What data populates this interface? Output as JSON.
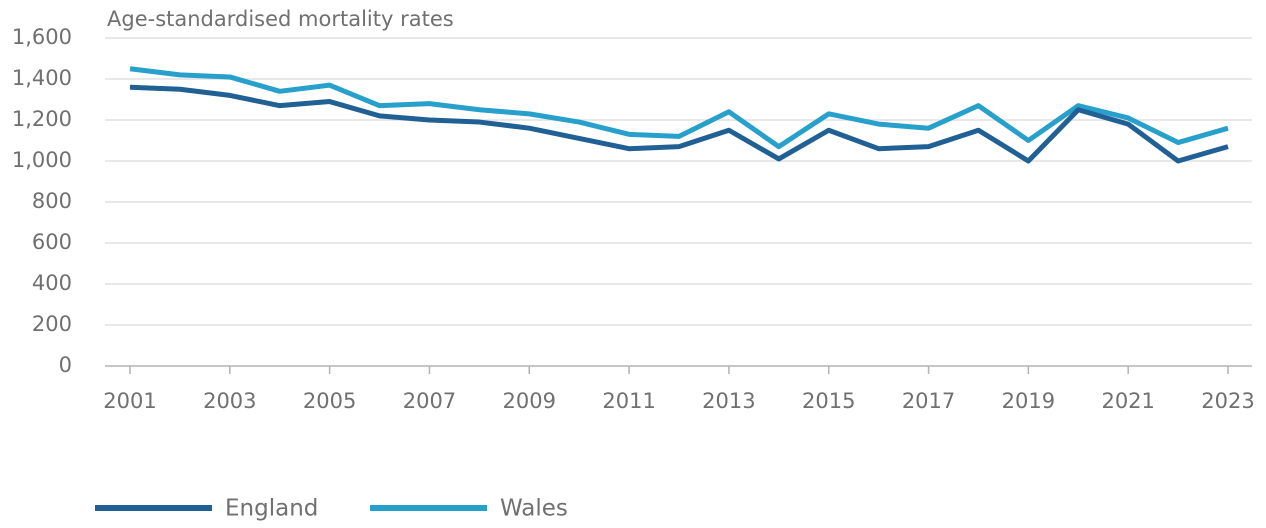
{
  "chart_data": {
    "type": "line",
    "title": "Age-standardised mortality rates",
    "x": [
      2001,
      2002,
      2003,
      2004,
      2005,
      2006,
      2007,
      2008,
      2009,
      2010,
      2011,
      2012,
      2013,
      2014,
      2015,
      2016,
      2017,
      2018,
      2019,
      2020,
      2021,
      2022,
      2023
    ],
    "series": [
      {
        "name": "England",
        "color": "#206095",
        "values": [
          1360,
          1350,
          1320,
          1270,
          1290,
          1220,
          1200,
          1190,
          1160,
          1110,
          1060,
          1070,
          1150,
          1010,
          1150,
          1060,
          1070,
          1150,
          1000,
          1250,
          1180,
          1000,
          1070
        ]
      },
      {
        "name": "Wales",
        "color": "#27a0cc",
        "values": [
          1450,
          1420,
          1410,
          1340,
          1370,
          1270,
          1280,
          1250,
          1230,
          1190,
          1130,
          1120,
          1240,
          1070,
          1230,
          1180,
          1160,
          1270,
          1100,
          1270,
          1210,
          1090,
          1160
        ]
      }
    ],
    "xlim": [
      2001,
      2023
    ],
    "xticks": [
      2001,
      2003,
      2005,
      2007,
      2009,
      2011,
      2013,
      2015,
      2017,
      2019,
      2021,
      2023
    ],
    "ylim": [
      0,
      1600
    ],
    "yticks": [
      0,
      200,
      400,
      600,
      800,
      {
        "value": 1000,
        "label": "1,000"
      },
      {
        "value": 1200,
        "label": "1,200"
      },
      {
        "value": 1400,
        "label": "1,400"
      },
      {
        "value": 1600,
        "label": "1,600"
      }
    ],
    "grid": true,
    "legend": "bottom"
  }
}
